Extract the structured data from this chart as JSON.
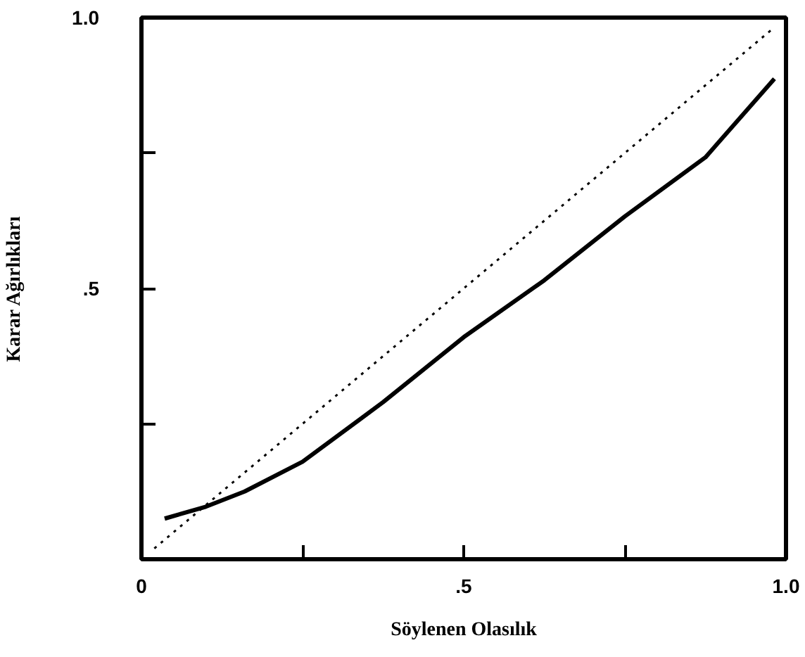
{
  "chart_data": {
    "type": "line",
    "xlabel": "Söylenen Olasılık",
    "ylabel": "Karar Ağırlıkları",
    "xlim": [
      0,
      1
    ],
    "ylim": [
      0,
      1
    ],
    "xticks": [
      {
        "value": 0,
        "label": "0"
      },
      {
        "value": 0.25,
        "label": null
      },
      {
        "value": 0.5,
        "label": ".5"
      },
      {
        "value": 0.75,
        "label": null
      },
      {
        "value": 1,
        "label": "1.0"
      }
    ],
    "yticks": [
      {
        "value": 0,
        "label": null
      },
      {
        "value": 0.25,
        "label": null
      },
      {
        "value": 0.5,
        "label": ".5"
      },
      {
        "value": 0.75,
        "label": null
      },
      {
        "value": 1,
        "label": "1.0"
      }
    ],
    "grid": false,
    "series": [
      {
        "color": "#000000",
        "line_style": "solid",
        "x": [
          0.036,
          0.1,
          0.16,
          0.25,
          0.375,
          0.5,
          0.625,
          0.75,
          0.875,
          0.982
        ],
        "values": [
          0.075,
          0.097,
          0.125,
          0.18,
          0.29,
          0.41,
          0.515,
          0.633,
          0.742,
          0.887
        ]
      },
      {
        "color": "#000000",
        "line_style": "dotted",
        "x": [
          0.02,
          0.98
        ],
        "values": [
          0.02,
          0.98
        ]
      }
    ]
  }
}
